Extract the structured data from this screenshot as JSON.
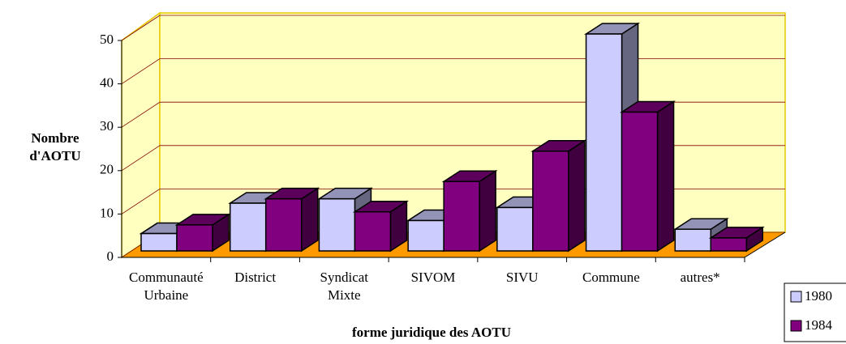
{
  "chart_data": {
    "type": "bar3d",
    "x_label": "forme juridique des AOTU",
    "y_label": "Nombre d'AOTU",
    "categories": [
      "Communauté Urbaine",
      "District",
      "Syndicat Mixte",
      "SIVOM",
      "SIVU",
      "Commune",
      "autres*"
    ],
    "series": [
      {
        "name": "1980",
        "color": "#ccccff",
        "values": [
          4,
          11,
          12,
          7,
          10,
          50,
          5
        ]
      },
      {
        "name": "1984",
        "color": "#800080",
        "values": [
          6,
          12,
          9,
          16,
          23,
          32,
          3
        ]
      }
    ],
    "ylim": [
      0,
      50
    ],
    "yticks": [
      0,
      10,
      20,
      30,
      40,
      50
    ],
    "grid": true,
    "legend": "right"
  }
}
